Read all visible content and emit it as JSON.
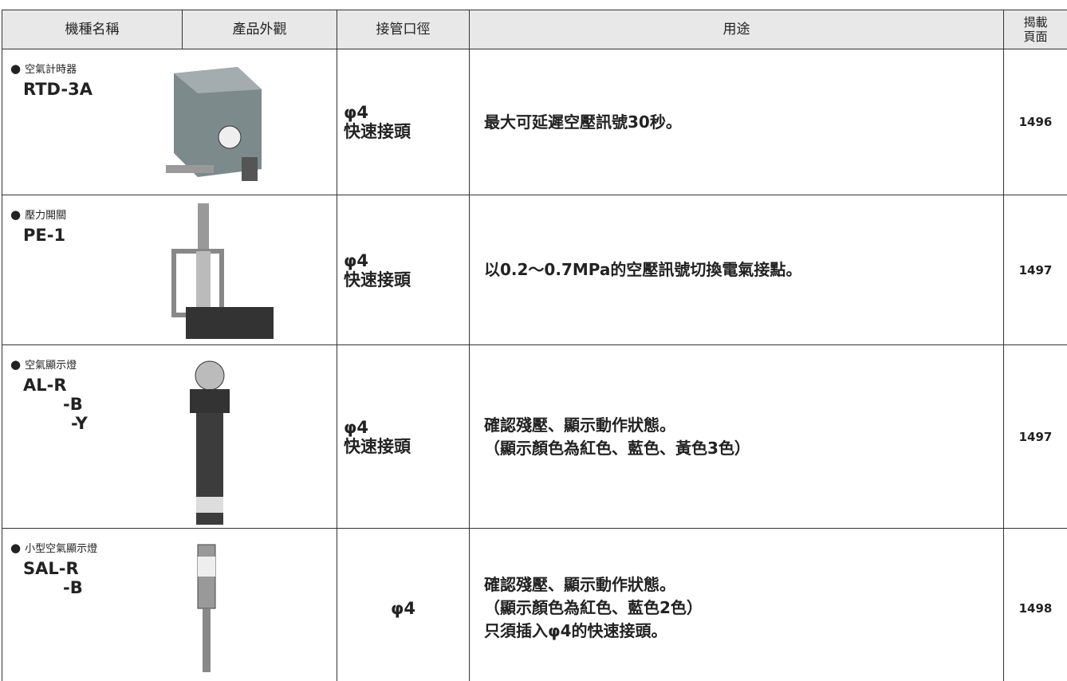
{
  "table": {
    "headers": [
      "機種名稱",
      "產品外觀",
      "接管口徑",
      "用途",
      "揭載\n頁面"
    ],
    "rows": [
      {
        "category": "空氣計時器",
        "model": [
          "RTD-3A"
        ],
        "port": [
          "φ4",
          "快速接頭"
        ],
        "usage": [
          "最大可延遲空壓訊號30秒。"
        ],
        "page": "1496"
      },
      {
        "category": "壓力開關",
        "model": [
          "PE-1"
        ],
        "port": [
          "φ4",
          "快速接頭"
        ],
        "usage": [
          "以0.2～0.7MPa的空壓訊號切換電氣接點。"
        ],
        "page": "1497"
      },
      {
        "category": "空氣顯示燈",
        "model": [
          "AL-R",
          "-B",
          "-Y"
        ],
        "port": [
          "φ4",
          "快速接頭"
        ],
        "usage": [
          "確認殘壓、顯示動作狀態。",
          "（顯示顏色為紅色、藍色、黃色3色）"
        ],
        "page": "1497"
      },
      {
        "category": "小型空氣顯示燈",
        "model": [
          "SAL-R",
          "-B"
        ],
        "port": [
          "φ4"
        ],
        "usage": [
          "確認殘壓、顯示動作狀態。",
          "（顯示顏色為紅色、藍色2色）",
          "只須插入φ4的快速接頭。"
        ],
        "page": "1498"
      }
    ]
  }
}
